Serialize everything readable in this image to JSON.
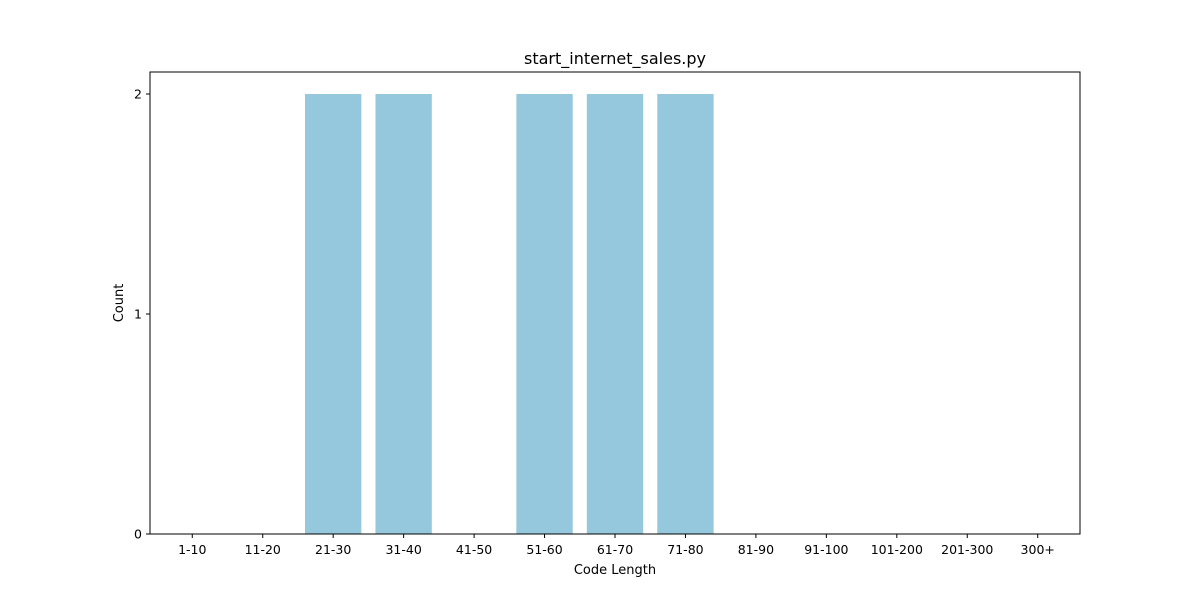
{
  "chart_data": {
    "type": "bar",
    "title": "start_internet_sales.py",
    "xlabel": "Code Length",
    "ylabel": "Count",
    "categories": [
      "1-10",
      "11-20",
      "21-30",
      "31-40",
      "41-50",
      "51-60",
      "61-70",
      "71-80",
      "81-90",
      "91-100",
      "101-200",
      "201-300",
      "300+"
    ],
    "values": [
      0,
      0,
      2,
      2,
      0,
      2,
      2,
      2,
      0,
      0,
      0,
      0,
      0
    ],
    "yticks": [
      0,
      1,
      2
    ],
    "ylim": [
      0,
      2.1
    ],
    "bar_color": "#96c8dd",
    "grid": false,
    "legend": "none"
  }
}
